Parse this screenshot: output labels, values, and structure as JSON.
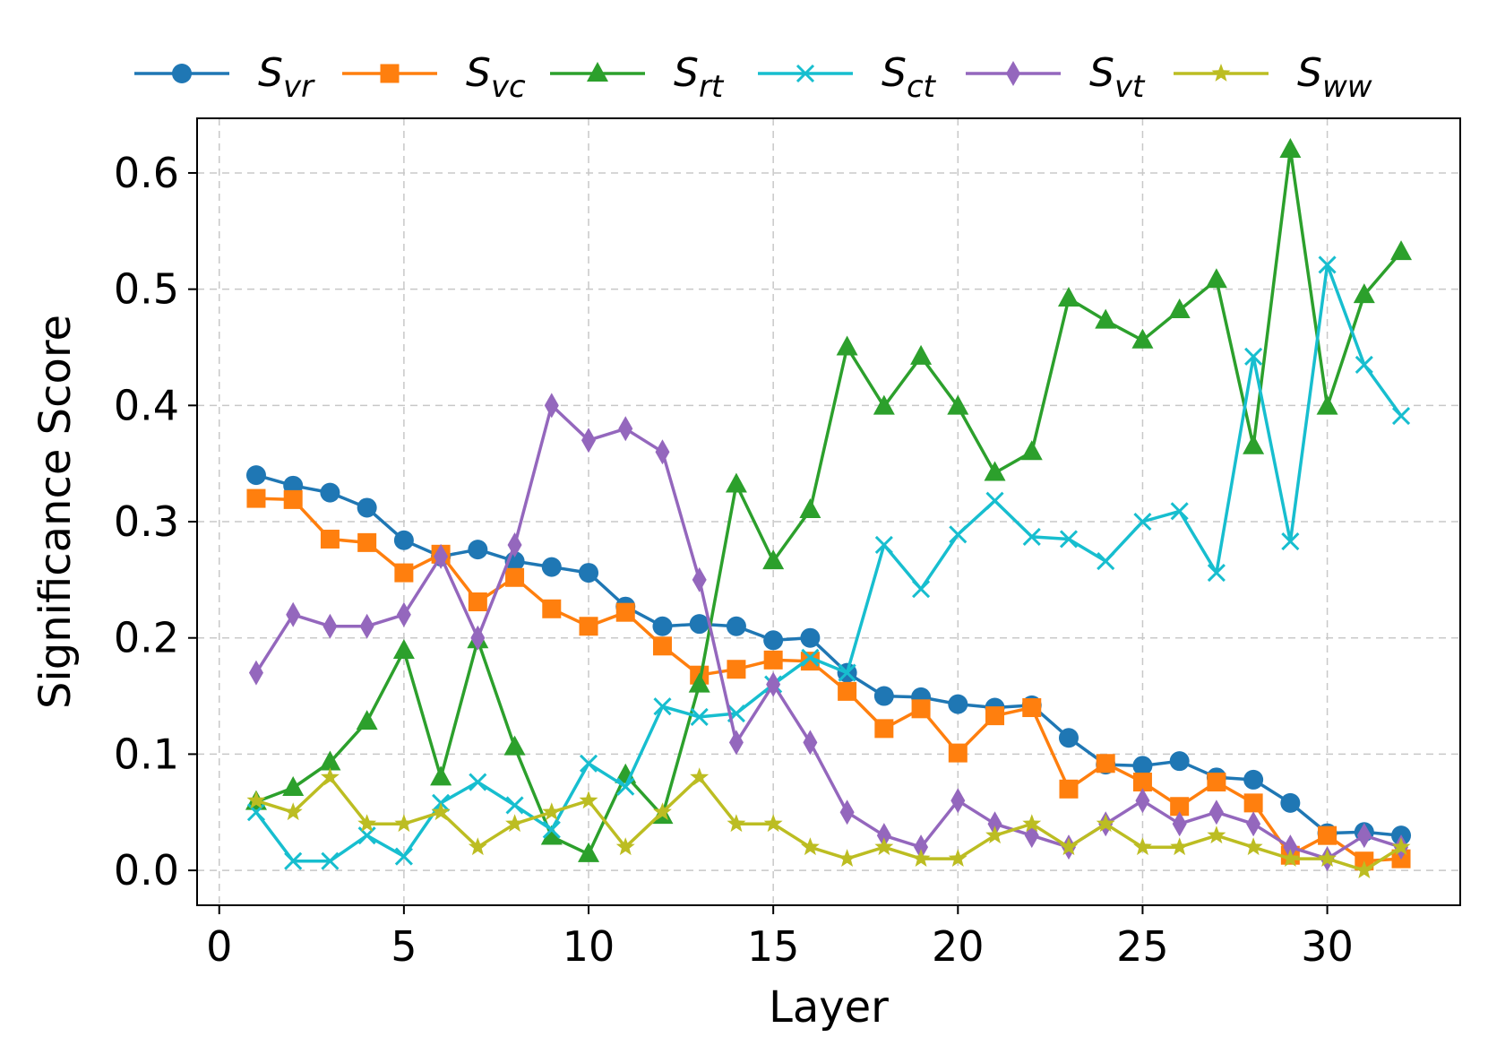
{
  "chart_data": {
    "type": "line",
    "title": "",
    "xlabel": "Layer",
    "ylabel": "Significance Score",
    "xlim": [
      -0.6,
      33.6
    ],
    "ylim": [
      -0.03,
      0.647
    ],
    "xticks": [
      0,
      5,
      10,
      15,
      20,
      25,
      30
    ],
    "xtick_labels": [
      "0",
      "5",
      "10",
      "15",
      "20",
      "25",
      "30"
    ],
    "yticks": [
      0.0,
      0.1,
      0.2,
      0.3,
      0.4,
      0.5,
      0.6
    ],
    "ytick_labels": [
      "0.0",
      "0.1",
      "0.2",
      "0.3",
      "0.4",
      "0.5",
      "0.6"
    ],
    "grid": true,
    "legend_position": "top, outside plot, single row",
    "x": [
      1,
      2,
      3,
      4,
      5,
      6,
      7,
      8,
      9,
      10,
      11,
      12,
      13,
      14,
      15,
      16,
      17,
      18,
      19,
      20,
      21,
      22,
      23,
      24,
      25,
      26,
      27,
      28,
      29,
      30,
      31,
      32
    ],
    "series": [
      {
        "name": "S_vr",
        "label_main": "S",
        "label_sub": "vr",
        "color": "#1f77b4",
        "marker": "circle",
        "values": [
          0.34,
          0.331,
          0.325,
          0.312,
          0.284,
          0.27,
          0.276,
          0.266,
          0.261,
          0.256,
          0.227,
          0.21,
          0.212,
          0.21,
          0.198,
          0.2,
          0.17,
          0.15,
          0.149,
          0.143,
          0.14,
          0.142,
          0.114,
          0.091,
          0.09,
          0.094,
          0.08,
          0.078,
          0.058,
          0.032,
          0.033,
          0.03
        ]
      },
      {
        "name": "S_vc",
        "label_main": "S",
        "label_sub": "vc",
        "color": "#ff7f0e",
        "marker": "square",
        "values": [
          0.32,
          0.319,
          0.285,
          0.282,
          0.256,
          0.272,
          0.231,
          0.252,
          0.225,
          0.21,
          0.222,
          0.193,
          0.168,
          0.173,
          0.181,
          0.18,
          0.154,
          0.122,
          0.139,
          0.101,
          0.133,
          0.14,
          0.07,
          0.092,
          0.076,
          0.055,
          0.076,
          0.058,
          0.013,
          0.03,
          0.008,
          0.01
        ]
      },
      {
        "name": "S_rt",
        "label_main": "S",
        "label_sub": "rt",
        "color": "#2ca02c",
        "marker": "triangle",
        "values": [
          0.059,
          0.071,
          0.093,
          0.128,
          0.189,
          0.08,
          0.198,
          0.106,
          0.029,
          0.014,
          0.082,
          0.047,
          0.16,
          0.332,
          0.266,
          0.31,
          0.45,
          0.399,
          0.442,
          0.399,
          0.342,
          0.36,
          0.492,
          0.473,
          0.456,
          0.482,
          0.508,
          0.365,
          0.62,
          0.399,
          0.495,
          0.532
        ]
      },
      {
        "name": "S_ct",
        "label_main": "S",
        "label_sub": "ct",
        "color": "#17becf",
        "marker": "x",
        "values": [
          0.05,
          0.008,
          0.008,
          0.03,
          0.012,
          0.058,
          0.076,
          0.056,
          0.035,
          0.092,
          0.072,
          0.141,
          0.132,
          0.135,
          0.16,
          0.183,
          0.17,
          0.28,
          0.242,
          0.289,
          0.318,
          0.287,
          0.285,
          0.266,
          0.3,
          0.309,
          0.256,
          0.442,
          0.283,
          0.521,
          0.435,
          0.391
        ]
      },
      {
        "name": "S_vt",
        "label_main": "S",
        "label_sub": "vt",
        "color": "#9467bd",
        "marker": "diamond",
        "values": [
          0.17,
          0.22,
          0.21,
          0.21,
          0.22,
          0.27,
          0.2,
          0.28,
          0.4,
          0.37,
          0.38,
          0.36,
          0.25,
          0.11,
          0.16,
          0.11,
          0.05,
          0.03,
          0.02,
          0.06,
          0.04,
          0.03,
          0.02,
          0.04,
          0.06,
          0.04,
          0.05,
          0.04,
          0.02,
          0.01,
          0.03,
          0.02
        ]
      },
      {
        "name": "S_ww",
        "label_main": "S",
        "label_sub": "ww",
        "color": "#bcbd22",
        "marker": "star",
        "values": [
          0.06,
          0.05,
          0.08,
          0.04,
          0.04,
          0.05,
          0.02,
          0.04,
          0.05,
          0.06,
          0.02,
          0.05,
          0.08,
          0.04,
          0.04,
          0.02,
          0.01,
          0.02,
          0.01,
          0.01,
          0.03,
          0.04,
          0.02,
          0.04,
          0.02,
          0.02,
          0.03,
          0.02,
          0.01,
          0.01,
          0.0,
          0.02
        ]
      }
    ]
  }
}
